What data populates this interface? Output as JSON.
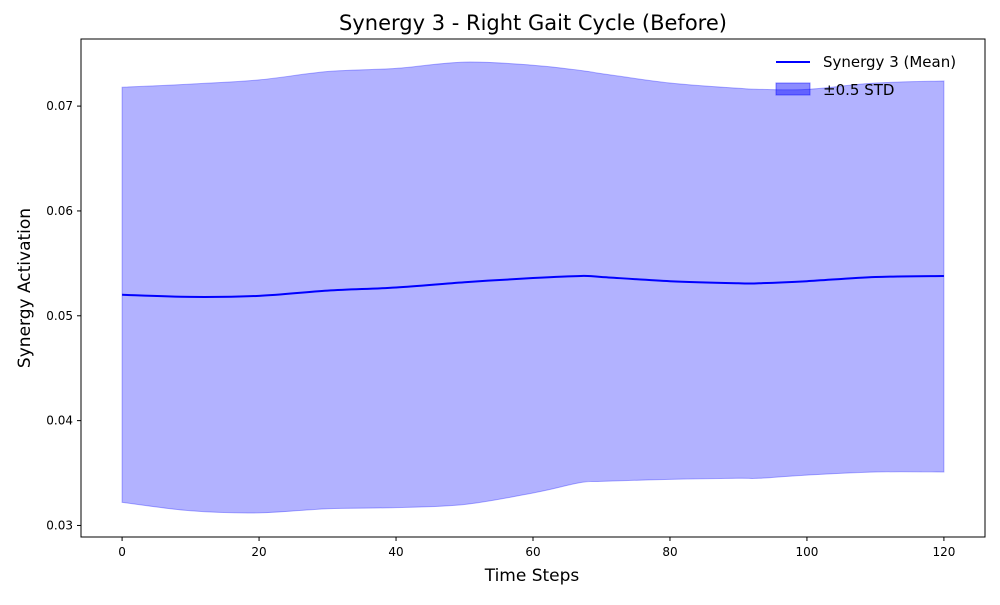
{
  "chart_data": {
    "type": "line",
    "title": "Synergy 3 - Right Gait Cycle (Before)",
    "xlabel": "Time Steps",
    "ylabel": "Synergy Activation",
    "xlim": [
      -6,
      126
    ],
    "ylim": [
      0.0289,
      0.0764
    ],
    "xticks": [
      0,
      20,
      40,
      60,
      80,
      100,
      120
    ],
    "xtick_labels": [
      "0",
      "20",
      "40",
      "60",
      "80",
      "100",
      "120"
    ],
    "yticks": [
      0.03,
      0.04,
      0.05,
      0.06,
      0.07
    ],
    "ytick_labels": [
      "0.03",
      "0.04",
      "0.05",
      "0.06",
      "0.07"
    ],
    "grid": false,
    "legend_position": "top-right",
    "x": [
      0,
      10,
      20,
      30,
      40,
      50,
      60,
      67,
      70,
      80,
      90,
      93,
      100,
      110,
      120
    ],
    "series": [
      {
        "name": "Synergy 3 (Mean)",
        "kind": "line",
        "color": "#0000ff",
        "values": [
          0.052,
          0.0518,
          0.0519,
          0.0524,
          0.0527,
          0.0532,
          0.0536,
          0.0538,
          0.0537,
          0.0533,
          0.0531,
          0.0531,
          0.0533,
          0.0537,
          0.0538
        ]
      },
      {
        "name": "±0.5 STD",
        "kind": "band",
        "color": "#0000ff",
        "opacity": 0.3,
        "lower": [
          0.0322,
          0.0314,
          0.0312,
          0.0316,
          0.0317,
          0.032,
          0.0331,
          0.0341,
          0.0342,
          0.0344,
          0.0345,
          0.0345,
          0.0348,
          0.0351,
          0.0351
        ],
        "upper": [
          0.0718,
          0.0721,
          0.0725,
          0.0733,
          0.0736,
          0.0742,
          0.0739,
          0.0734,
          0.0731,
          0.0722,
          0.0717,
          0.0716,
          0.0716,
          0.0722,
          0.0724
        ]
      }
    ]
  }
}
